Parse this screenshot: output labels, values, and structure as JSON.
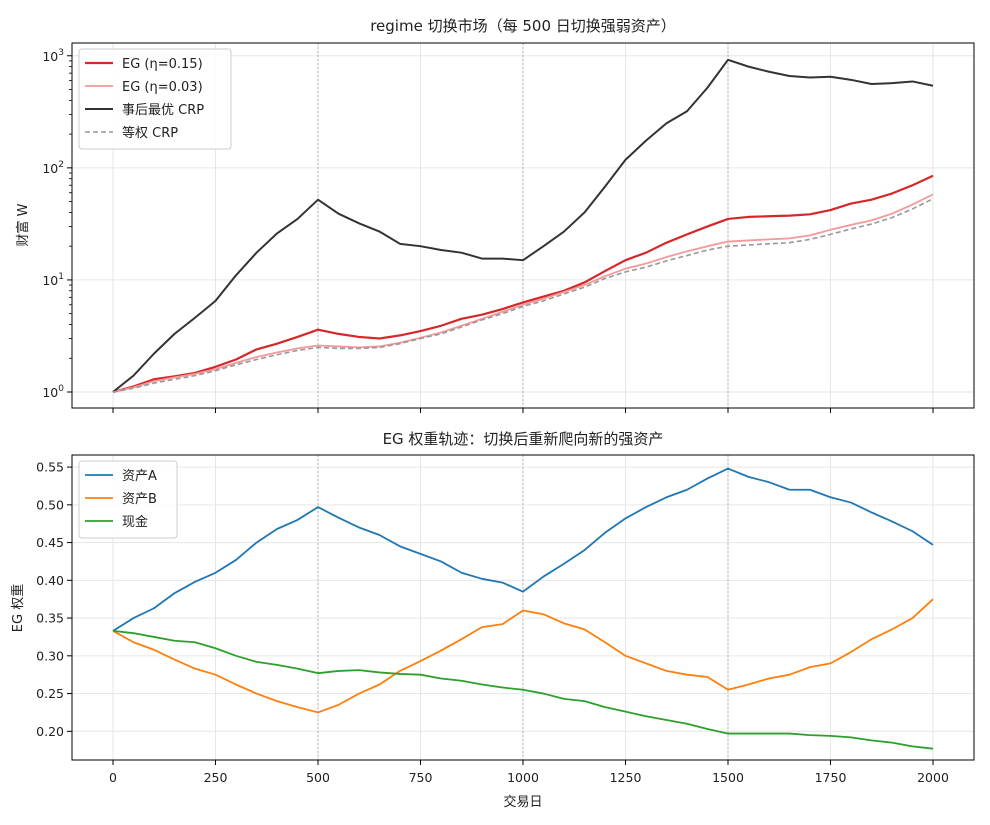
{
  "chart_data": [
    {
      "type": "line",
      "title": "regime 切换市场（每 500 日切换强弱资产）",
      "xlabel": "",
      "ylabel": "财富 W",
      "yscale": "log",
      "xlim": [
        -100,
        2100
      ],
      "ylim": [
        0.72,
        1300
      ],
      "xticks": [
        0,
        250,
        500,
        750,
        1000,
        1250,
        1500,
        1750,
        2000
      ],
      "yticks": [
        1,
        10,
        100,
        1000
      ],
      "ytick_labels": [
        {
          "base": "10",
          "exp": "0"
        },
        {
          "base": "10",
          "exp": "1"
        },
        {
          "base": "10",
          "exp": "2"
        },
        {
          "base": "10",
          "exp": "3"
        }
      ],
      "grid": true,
      "vlines": [
        500,
        1000,
        1500
      ],
      "legend_position": "top-left",
      "series": [
        {
          "name": "EG (η=0.15)",
          "color": "#d62728",
          "width": 2.2,
          "dash": "",
          "opacity": 1,
          "x": [
            0,
            50,
            100,
            150,
            200,
            250,
            300,
            350,
            400,
            450,
            500,
            550,
            600,
            650,
            700,
            750,
            800,
            850,
            900,
            950,
            1000,
            1050,
            1100,
            1150,
            1200,
            1250,
            1300,
            1350,
            1400,
            1450,
            1500,
            1550,
            1600,
            1650,
            1700,
            1750,
            1800,
            1850,
            1900,
            1950,
            2000
          ],
          "values": [
            1.0,
            1.12,
            1.3,
            1.38,
            1.48,
            1.68,
            1.95,
            2.4,
            2.7,
            3.1,
            3.6,
            3.3,
            3.1,
            3.0,
            3.2,
            3.5,
            3.9,
            4.5,
            4.9,
            5.5,
            6.3,
            7.1,
            8.0,
            9.5,
            12.0,
            15.0,
            17.5,
            21.5,
            25.5,
            30.0,
            35.0,
            36.5,
            37.0,
            37.5,
            38.5,
            42.0,
            48.0,
            52.0,
            59.0,
            70.0,
            85.0
          ]
        },
        {
          "name": "EG (η=0.03)",
          "color": "#f4989a",
          "width": 1.8,
          "dash": "",
          "opacity": 1,
          "x": [
            0,
            50,
            100,
            150,
            200,
            250,
            300,
            350,
            400,
            450,
            500,
            550,
            600,
            650,
            700,
            750,
            800,
            850,
            900,
            950,
            1000,
            1050,
            1100,
            1150,
            1200,
            1250,
            1300,
            1350,
            1400,
            1450,
            1500,
            1550,
            1600,
            1650,
            1700,
            1750,
            1800,
            1850,
            1900,
            1950,
            2000
          ],
          "values": [
            1.0,
            1.1,
            1.25,
            1.35,
            1.45,
            1.6,
            1.82,
            2.05,
            2.25,
            2.45,
            2.6,
            2.55,
            2.5,
            2.55,
            2.75,
            3.05,
            3.4,
            3.9,
            4.5,
            5.2,
            6.0,
            6.8,
            7.8,
            9.0,
            10.8,
            12.6,
            14.0,
            16.0,
            18.0,
            20.0,
            22.0,
            22.5,
            23.0,
            23.5,
            25.0,
            28.0,
            31.0,
            34.0,
            39.0,
            47.0,
            58.0
          ]
        },
        {
          "name": "事后最优 CRP",
          "color": "#333333",
          "width": 2.0,
          "dash": "",
          "opacity": 1,
          "x": [
            0,
            50,
            100,
            150,
            200,
            250,
            300,
            350,
            400,
            450,
            500,
            550,
            600,
            650,
            700,
            750,
            800,
            850,
            900,
            950,
            1000,
            1050,
            1100,
            1150,
            1200,
            1250,
            1300,
            1350,
            1400,
            1450,
            1500,
            1550,
            1600,
            1650,
            1700,
            1750,
            1800,
            1850,
            1900,
            1950,
            2000
          ],
          "values": [
            1.0,
            1.4,
            2.2,
            3.3,
            4.6,
            6.5,
            11.0,
            17.5,
            26.0,
            35.0,
            52.0,
            39.0,
            32.0,
            27.0,
            21.0,
            20.0,
            18.5,
            17.5,
            15.5,
            15.5,
            15.0,
            20.0,
            27.0,
            40.0,
            68.0,
            118.0,
            175.0,
            250.0,
            320.0,
            520.0,
            920.0,
            800.0,
            720.0,
            660.0,
            640.0,
            650.0,
            610.0,
            560.0,
            570.0,
            590.0,
            540.0
          ]
        },
        {
          "name": "等权 CRP",
          "color": "#999999",
          "width": 1.6,
          "dash": "5,3",
          "opacity": 1,
          "x": [
            0,
            50,
            100,
            150,
            200,
            250,
            300,
            350,
            400,
            450,
            500,
            550,
            600,
            650,
            700,
            750,
            800,
            850,
            900,
            950,
            1000,
            1050,
            1100,
            1150,
            1200,
            1250,
            1300,
            1350,
            1400,
            1450,
            1500,
            1550,
            1600,
            1650,
            1700,
            1750,
            1800,
            1850,
            1900,
            1950,
            2000
          ],
          "values": [
            1.0,
            1.08,
            1.2,
            1.3,
            1.4,
            1.55,
            1.75,
            1.95,
            2.15,
            2.35,
            2.5,
            2.45,
            2.45,
            2.5,
            2.7,
            3.0,
            3.3,
            3.8,
            4.4,
            5.0,
            5.8,
            6.5,
            7.5,
            8.6,
            10.3,
            11.8,
            13.0,
            14.8,
            16.5,
            18.5,
            20.0,
            20.5,
            21.0,
            21.5,
            23.0,
            25.5,
            28.5,
            31.5,
            36.0,
            43.0,
            53.0
          ]
        }
      ]
    },
    {
      "type": "line",
      "title": "EG 权重轨迹：切换后重新爬向新的强资产",
      "xlabel": "交易日",
      "ylabel": "EG 权重",
      "yscale": "linear",
      "xlim": [
        -100,
        2100
      ],
      "ylim": [
        0.162,
        0.566
      ],
      "xticks": [
        0,
        250,
        500,
        750,
        1000,
        1250,
        1500,
        1750,
        2000
      ],
      "xtick_labels": [
        "0",
        "250",
        "500",
        "750",
        "1000",
        "1250",
        "1500",
        "1750",
        "2000"
      ],
      "yticks": [
        0.2,
        0.25,
        0.3,
        0.35,
        0.4,
        0.45,
        0.5,
        0.55
      ],
      "ytick_labels": [
        "0.20",
        "0.25",
        "0.30",
        "0.35",
        "0.40",
        "0.45",
        "0.50",
        "0.55"
      ],
      "grid": true,
      "vlines": [
        500,
        1000,
        1500
      ],
      "legend_position": "top-left",
      "series": [
        {
          "name": "资产A",
          "color": "#1f77b4",
          "width": 1.8,
          "dash": "",
          "opacity": 1,
          "x": [
            0,
            50,
            100,
            150,
            200,
            250,
            300,
            350,
            400,
            450,
            500,
            550,
            600,
            650,
            700,
            750,
            800,
            850,
            900,
            950,
            1000,
            1050,
            1100,
            1150,
            1200,
            1250,
            1300,
            1350,
            1400,
            1450,
            1500,
            1550,
            1600,
            1650,
            1700,
            1750,
            1800,
            1850,
            1900,
            1950,
            2000
          ],
          "values": [
            0.333,
            0.35,
            0.363,
            0.383,
            0.398,
            0.41,
            0.427,
            0.45,
            0.468,
            0.48,
            0.497,
            0.483,
            0.47,
            0.46,
            0.445,
            0.435,
            0.425,
            0.41,
            0.402,
            0.397,
            0.385,
            0.405,
            0.422,
            0.44,
            0.463,
            0.482,
            0.497,
            0.51,
            0.52,
            0.535,
            0.548,
            0.537,
            0.53,
            0.52,
            0.52,
            0.51,
            0.503,
            0.49,
            0.478,
            0.465,
            0.447
          ]
        },
        {
          "name": "资产B",
          "color": "#ff7f0e",
          "width": 1.8,
          "dash": "",
          "opacity": 1,
          "x": [
            0,
            50,
            100,
            150,
            200,
            250,
            300,
            350,
            400,
            450,
            500,
            550,
            600,
            650,
            700,
            750,
            800,
            850,
            900,
            950,
            1000,
            1050,
            1100,
            1150,
            1200,
            1250,
            1300,
            1350,
            1400,
            1450,
            1500,
            1550,
            1600,
            1650,
            1700,
            1750,
            1800,
            1850,
            1900,
            1950,
            2000
          ],
          "values": [
            0.333,
            0.318,
            0.308,
            0.295,
            0.283,
            0.275,
            0.262,
            0.25,
            0.24,
            0.232,
            0.225,
            0.235,
            0.25,
            0.262,
            0.28,
            0.293,
            0.307,
            0.322,
            0.338,
            0.342,
            0.36,
            0.355,
            0.343,
            0.335,
            0.318,
            0.3,
            0.29,
            0.28,
            0.275,
            0.272,
            0.255,
            0.262,
            0.27,
            0.275,
            0.285,
            0.29,
            0.305,
            0.322,
            0.335,
            0.35,
            0.375
          ]
        },
        {
          "name": "现金",
          "color": "#2ca02c",
          "width": 1.8,
          "dash": "",
          "opacity": 1,
          "x": [
            0,
            50,
            100,
            150,
            200,
            250,
            300,
            350,
            400,
            450,
            500,
            550,
            600,
            650,
            700,
            750,
            800,
            850,
            900,
            950,
            1000,
            1050,
            1100,
            1150,
            1200,
            1250,
            1300,
            1350,
            1400,
            1450,
            1500,
            1550,
            1600,
            1650,
            1700,
            1750,
            1800,
            1850,
            1900,
            1950,
            2000
          ],
          "values": [
            0.333,
            0.33,
            0.325,
            0.32,
            0.318,
            0.31,
            0.3,
            0.292,
            0.288,
            0.283,
            0.277,
            0.28,
            0.281,
            0.278,
            0.276,
            0.275,
            0.27,
            0.267,
            0.262,
            0.258,
            0.255,
            0.25,
            0.243,
            0.24,
            0.232,
            0.226,
            0.22,
            0.215,
            0.21,
            0.203,
            0.197,
            0.197,
            0.197,
            0.197,
            0.195,
            0.194,
            0.192,
            0.188,
            0.185,
            0.18,
            0.177
          ]
        }
      ]
    }
  ]
}
